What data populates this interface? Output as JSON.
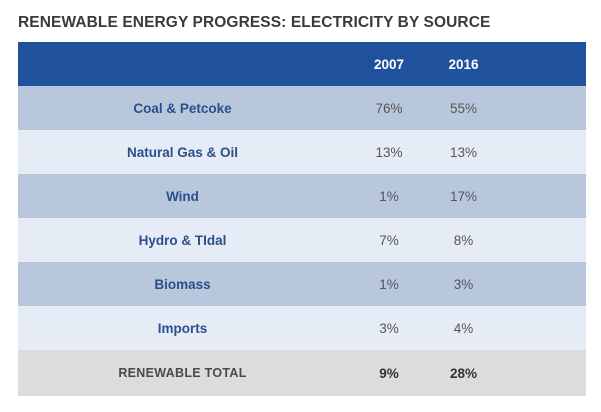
{
  "chart_data": {
    "type": "table",
    "title": "RENEWABLE ENERGY PROGRESS: ELECTRICITY BY SOURCE",
    "columns": [
      "",
      "2007",
      "2016"
    ],
    "rows": [
      {
        "source": "Coal & Petcoke",
        "y2007": "76%",
        "y2016": "55%"
      },
      {
        "source": "Natural Gas & Oil",
        "y2007": "13%",
        "y2016": "13%"
      },
      {
        "source": "Wind",
        "y2007": "1%",
        "y2016": "17%"
      },
      {
        "source": "Hydro & TIdal",
        "y2007": "7%",
        "y2016": "8%"
      },
      {
        "source": "Biomass",
        "y2007": "1%",
        "y2016": "3%"
      },
      {
        "source": "Imports",
        "y2007": "3%",
        "y2016": "4%"
      }
    ],
    "total": {
      "label": "RENEWABLE TOTAL",
      "y2007": "9%",
      "y2016": "28%"
    }
  },
  "colors": {
    "header_bg": "#20519d",
    "row_dark": "#b9c7dd",
    "row_light": "#e6ecf5",
    "total_bg": "#dcdcdc",
    "label_text": "#2b4f8c"
  }
}
